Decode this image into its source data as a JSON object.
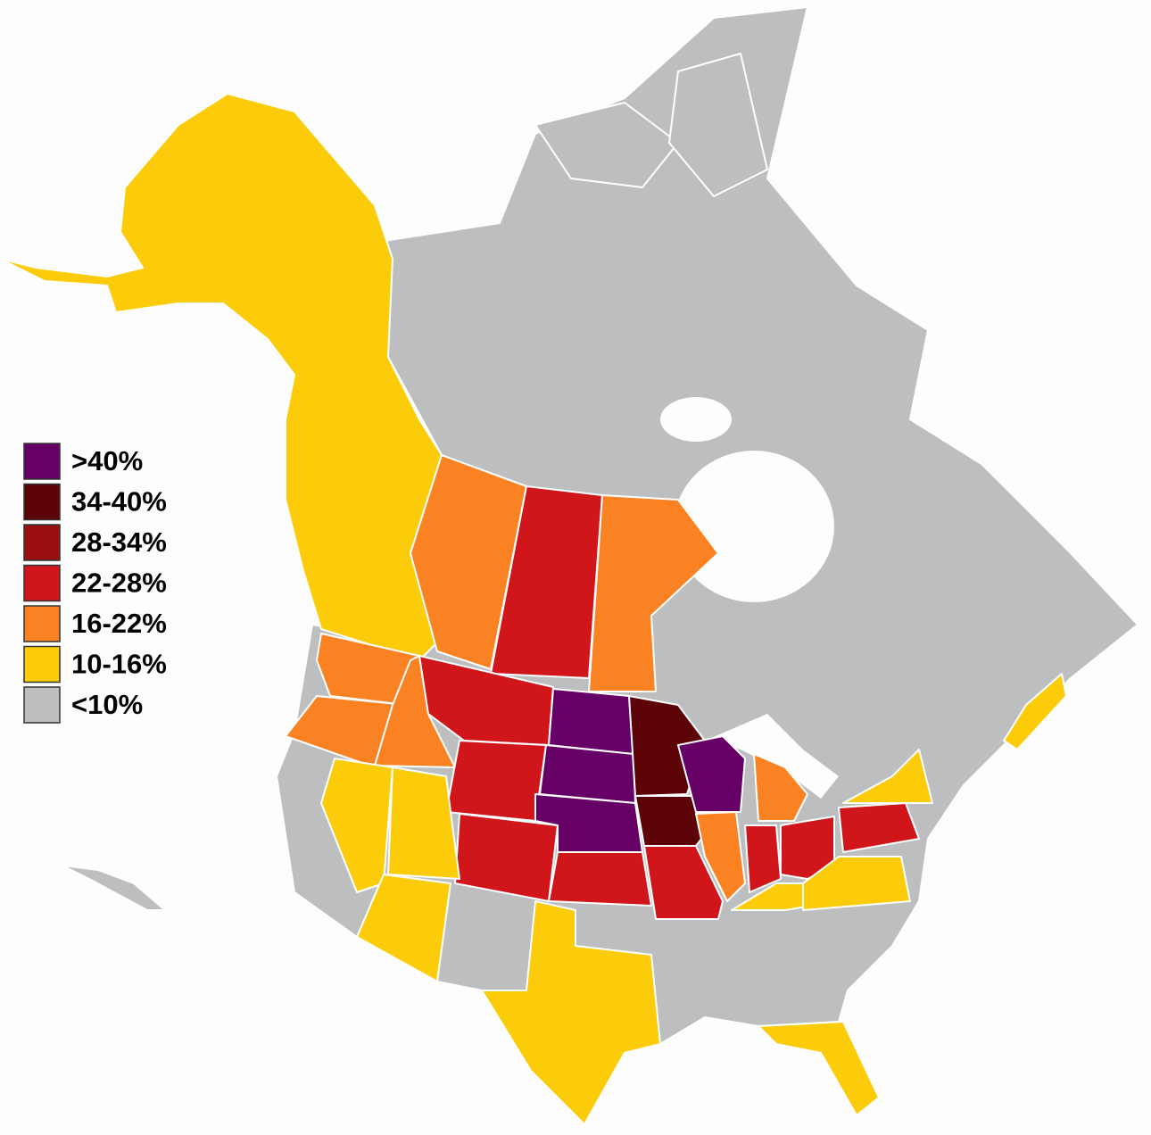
{
  "legend": {
    "items": [
      {
        "label": ">40%",
        "color": "#660066"
      },
      {
        "label": "34-40%",
        "color": "#5c0408"
      },
      {
        "label": "28-34%",
        "color": "#990f0f"
      },
      {
        "label": "22-28%",
        "color": "#d0161b"
      },
      {
        "label": "16-22%",
        "color": "#fb8222"
      },
      {
        "label": "10-16%",
        "color": "#fccb0a"
      },
      {
        "label": "<10%",
        "color": "#bdbec0"
      }
    ]
  }
}
